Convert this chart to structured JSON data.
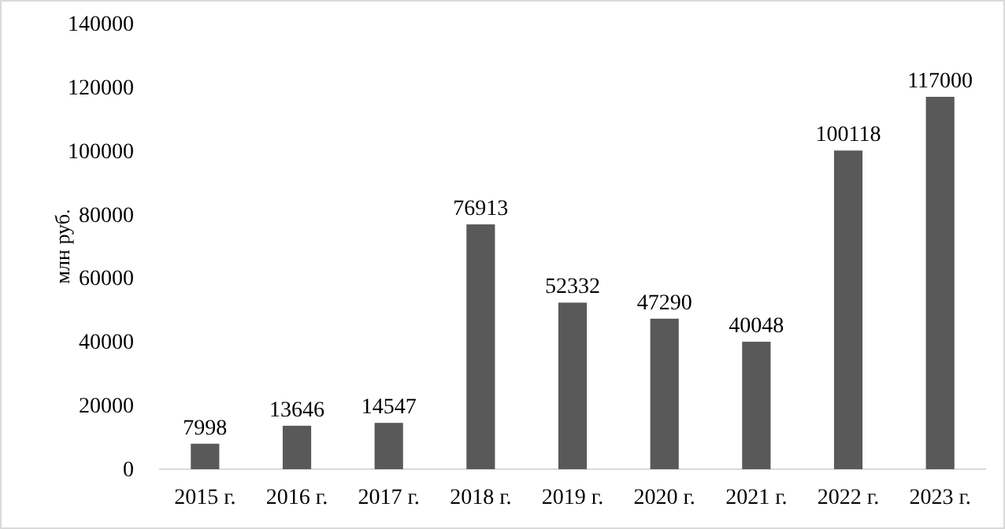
{
  "chart_data": {
    "type": "bar",
    "ylabel": "млн руб.",
    "categories": [
      "2015 г.",
      "2016 г.",
      "2017 г.",
      "2018 г.",
      "2019 г.",
      "2020 г.",
      "2021 г.",
      "2022 г.",
      "2023 г."
    ],
    "values": [
      7998,
      13646,
      14547,
      76913,
      52332,
      47290,
      40048,
      100118,
      117000
    ],
    "color": "#595959",
    "ylim": [
      0,
      140000
    ],
    "yticks": [
      0,
      20000,
      40000,
      60000,
      80000,
      100000,
      120000,
      140000
    ],
    "data_labels": true
  }
}
